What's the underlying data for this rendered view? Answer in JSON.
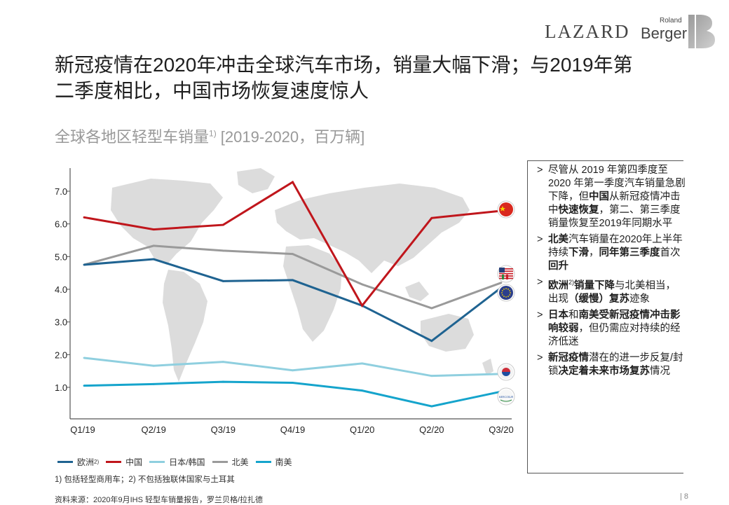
{
  "header": {
    "logo_lazard": "LAZARD",
    "logo_roland": "Roland",
    "logo_berger": "Berger"
  },
  "title": {
    "line1": "新冠疫情在2020年冲击全球汽车市场，销量大幅下滑；与2019年第",
    "line2": "二季度相比，中国市场恢复速度惊人"
  },
  "subtitle": {
    "main": "全球各地区轻型车销量",
    "sup": "1)",
    "range": " [2019-2020，百万辆]"
  },
  "colors": {
    "europe": "#1f6391",
    "china": "#c0161c",
    "japan_korea": "#8fcfdf",
    "north_america": "#9a9a9a",
    "south_america": "#15a4cc",
    "map": "#dcdcdc",
    "axis": "#555555"
  },
  "chart_data": {
    "type": "line",
    "categories": [
      "Q1/19",
      "Q2/19",
      "Q3/19",
      "Q4/19",
      "Q1/20",
      "Q2/20",
      "Q3/20"
    ],
    "ylim": [
      0,
      7.5
    ],
    "yticks": [
      "1.0",
      "2.0",
      "3.0",
      "4.0",
      "5.0",
      "6.0",
      "7.0"
    ],
    "series": [
      {
        "key": "europe",
        "name": "欧洲",
        "sup": "2)",
        "values": [
          4.75,
          4.92,
          4.25,
          4.28,
          3.5,
          2.42,
          4.05
        ]
      },
      {
        "key": "china",
        "name": "中国",
        "sup": "",
        "values": [
          6.2,
          5.83,
          5.97,
          7.28,
          3.5,
          6.18,
          6.4
        ]
      },
      {
        "key": "japan_korea",
        "name": "日本/韩国",
        "sup": "",
        "values": [
          1.9,
          1.66,
          1.78,
          1.52,
          1.73,
          1.35,
          1.41
        ]
      },
      {
        "key": "north_america",
        "name": "北美",
        "sup": "",
        "values": [
          4.75,
          5.33,
          5.18,
          5.08,
          4.15,
          3.42,
          4.2
        ]
      },
      {
        "key": "south_america",
        "name": "南美",
        "sup": "",
        "values": [
          1.05,
          1.1,
          1.17,
          1.14,
          0.9,
          0.42,
          0.87
        ]
      }
    ],
    "flag_icons": [
      "china-flag-icon",
      "usa-mexico-flag-icon",
      "eu-flag-icon",
      "japan-korea-flag-icon",
      "mercosur-flag-icon"
    ],
    "mercosur_label": "MERCOSUR"
  },
  "bullets": [
    {
      "segments": [
        {
          "t": "尽管从 2019 年第四季度至2020 年第一季度汽车销量急剧下降，但",
          "b": false
        },
        {
          "t": "中国",
          "b": true
        },
        {
          "t": "从新冠疫情冲击中",
          "b": false
        },
        {
          "t": "快速恢复",
          "b": true
        },
        {
          "t": "，第二、第三季度销量恢复至2019年同期水平",
          "b": false
        }
      ]
    },
    {
      "segments": [
        {
          "t": "北美",
          "b": true
        },
        {
          "t": "汽车销量在2020年上半年持续",
          "b": false
        },
        {
          "t": "下滑",
          "b": true
        },
        {
          "t": "，",
          "b": false
        },
        {
          "t": "同年第三季度",
          "b": true
        },
        {
          "t": "首次",
          "b": false
        },
        {
          "t": "回升",
          "b": true
        }
      ]
    },
    {
      "segments": [
        {
          "t": "欧洲",
          "b": true
        },
        {
          "t": "2)",
          "b": false,
          "sup": true
        },
        {
          "t": "销量下降",
          "b": true
        },
        {
          "t": "与北美相当，出现",
          "b": false
        },
        {
          "t": "（缓慢）复苏",
          "b": true
        },
        {
          "t": "迹象",
          "b": false
        }
      ]
    },
    {
      "segments": [
        {
          "t": "日本",
          "b": true
        },
        {
          "t": "和",
          "b": false
        },
        {
          "t": "南美受新冠疫情冲击影响较弱",
          "b": true
        },
        {
          "t": "，但仍需应对持续的经济低迷",
          "b": false
        }
      ]
    },
    {
      "segments": [
        {
          "t": "新冠疫情",
          "b": true
        },
        {
          "t": "潜在的进一步反复/封锁",
          "b": false
        },
        {
          "t": "决定着未来市场复苏",
          "b": true
        },
        {
          "t": "情况",
          "b": false
        }
      ]
    }
  ],
  "bullet_marker": ">",
  "footnote": "1) 包括轻型商用车；2) 不包括独联体国家与土耳其",
  "source": "资料来源：2020年9月IHS 轻型车销量报告，罗兰贝格/拉扎德",
  "page": "|   8"
}
